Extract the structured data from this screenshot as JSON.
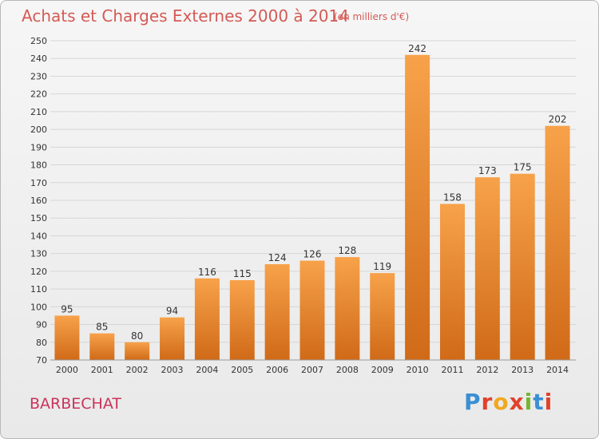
{
  "header": {
    "title": "Achats et Charges Externes 2000 à 2014",
    "unit": "(en milliers d'€)"
  },
  "footer": {
    "commune": "BARBECHAT",
    "logo_letters": [
      "P",
      "r",
      "o",
      "x",
      "i",
      "t",
      "i"
    ],
    "logo_colors": [
      "#3a8fd4",
      "#e0412b",
      "#f0a81e",
      "#e0412b",
      "#74b62e",
      "#3a8fd4",
      "#e0412b"
    ]
  },
  "colors": {
    "bar_light": "#f7a24a",
    "bar_dark": "#d06a18",
    "grid": "#d6d6d6",
    "title": "#d45a55",
    "commune": "#c8345c"
  },
  "chart_data": {
    "type": "bar",
    "categories": [
      "2000",
      "2001",
      "2002",
      "2003",
      "2004",
      "2005",
      "2006",
      "2007",
      "2008",
      "2009",
      "2010",
      "2011",
      "2012",
      "2013",
      "2014"
    ],
    "values": [
      95,
      85,
      80,
      94,
      116,
      115,
      124,
      126,
      128,
      119,
      242,
      158,
      173,
      175,
      202
    ],
    "title": "Achats et Charges Externes 2000 à 2014",
    "ylim": [
      70,
      250
    ],
    "ytick_step": 10,
    "grid": true
  }
}
